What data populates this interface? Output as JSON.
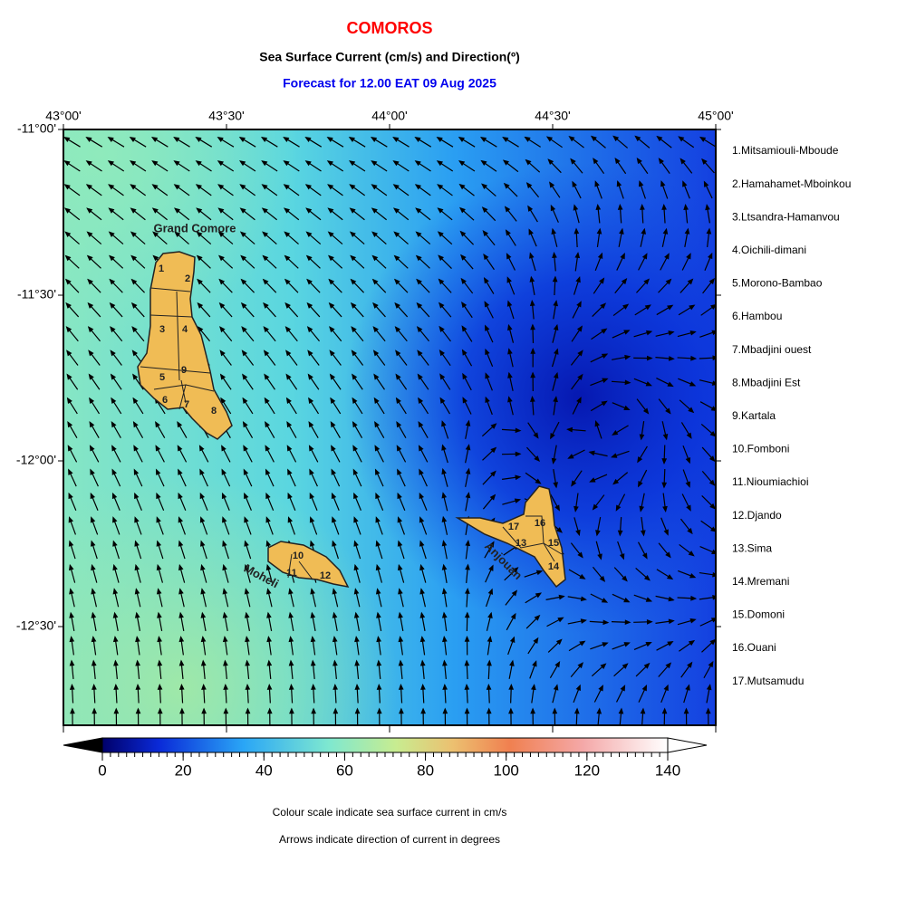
{
  "header": {
    "title": "COMOROS",
    "subtitle": "Sea Surface Current (cm/s) and Direction(º)",
    "forecast": "Forecast for  12.00 EAT 09 Aug 2025"
  },
  "map": {
    "lon_labels": [
      "43°00'",
      "43°30'",
      "44°00'",
      "44°30'",
      "45°00'"
    ],
    "lat_labels": [
      "-11°00'",
      "-11°30'",
      "-12°00'",
      "-12°30'"
    ],
    "islands": [
      {
        "name": "Grand Comore",
        "regions": [
          "1",
          "2",
          "3",
          "4",
          "5",
          "6",
          "7",
          "8",
          "9"
        ]
      },
      {
        "name": "Moheli",
        "regions": [
          "10",
          "11",
          "12"
        ]
      },
      {
        "name": "Anjouan",
        "regions": [
          "13",
          "14",
          "15",
          "16",
          "17"
        ]
      }
    ]
  },
  "legend": {
    "districts": [
      "1.Mitsamiouli-Mboude",
      "2.Hamahamet-Mboinkou",
      "3.Ltsandra-Hamanvou",
      "4.Oichili-dimani",
      "5.Morono-Bambao",
      "6.Hambou",
      "7.Mbadjini ouest",
      "8.Mbadjini Est",
      "9.Kartala",
      "10.Fomboni",
      "11.Nioumiachioi",
      "12.Djando",
      "13.Sima",
      "14.Mremani",
      "15.Domoni",
      "16.Ouani",
      "17.Mutsamudu"
    ]
  },
  "colorbar": {
    "ticks": [
      0,
      20,
      40,
      60,
      80,
      100,
      120,
      140
    ]
  },
  "notes": [
    "Colour scale indicate sea surface current in cm/s",
    "Arrows indicate direction of current in degrees"
  ]
}
